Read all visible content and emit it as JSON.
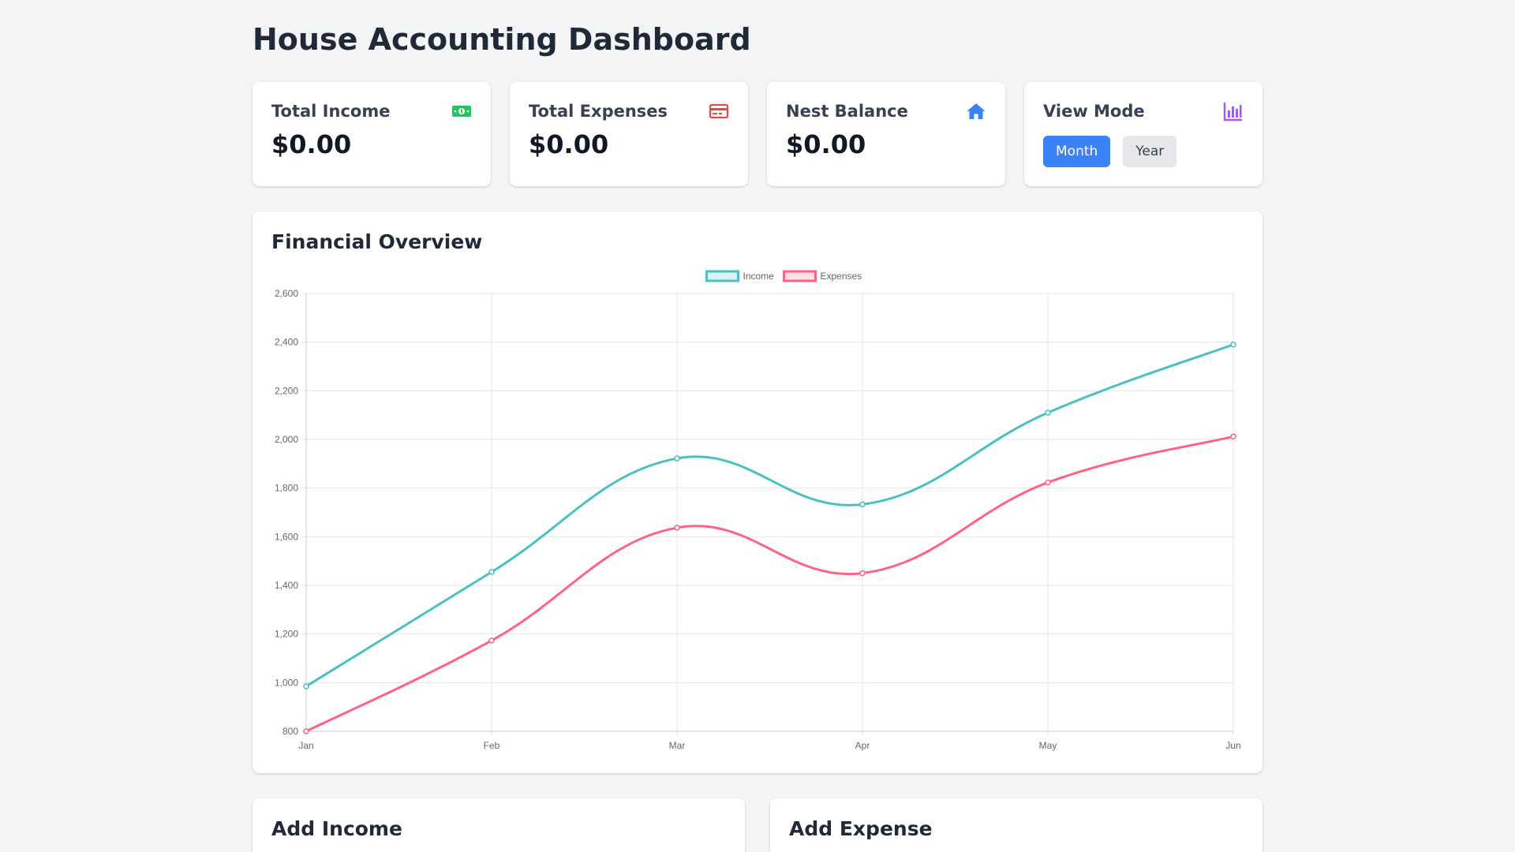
{
  "header": {
    "title": "House Accounting Dashboard"
  },
  "stats": {
    "income": {
      "label": "Total Income",
      "value": "$0.00",
      "icon": "cash-icon",
      "color": "#22c55e"
    },
    "expenses": {
      "label": "Total Expenses",
      "value": "$0.00",
      "icon": "credit-card-icon",
      "color": "#ef4444"
    },
    "balance": {
      "label": "Nest Balance",
      "value": "$0.00",
      "icon": "home-icon",
      "color": "#3b82f6"
    },
    "view_mode": {
      "label": "View Mode",
      "icon": "bar-chart-icon",
      "color": "#a855f7",
      "options": [
        "Month",
        "Year"
      ],
      "selected": "Month"
    }
  },
  "overview": {
    "title": "Financial Overview"
  },
  "chart_data": {
    "type": "line",
    "categories": [
      "Jan",
      "Feb",
      "Mar",
      "Apr",
      "May",
      "Jun"
    ],
    "series": [
      {
        "name": "Income",
        "color": "#4bc0c0",
        "values": [
          985,
          1455,
          1922,
          1733,
          2110,
          2390
        ]
      },
      {
        "name": "Expenses",
        "color": "#ff6384",
        "values": [
          800,
          1173,
          1637,
          1450,
          1823,
          2012
        ]
      }
    ],
    "ylim": [
      800,
      2600
    ],
    "yticks": [
      "800",
      "1,000",
      "1,200",
      "1,400",
      "1,600",
      "1,800",
      "2,000",
      "2,200",
      "2,400",
      "2,600"
    ],
    "grid": true,
    "legend": "top-center"
  },
  "forms": {
    "income": {
      "title": "Add Income"
    },
    "expense": {
      "title": "Add Expense"
    }
  }
}
